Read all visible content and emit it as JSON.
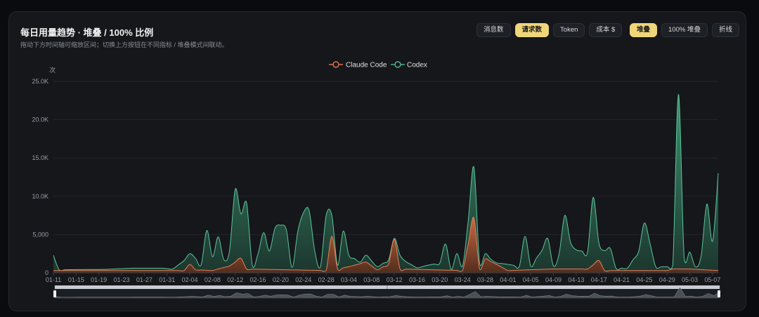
{
  "header": {
    "title": "每日用量趋势 · 堆叠 / 100% 比例",
    "subtitle": "拖动下方时间轴可缩放区间；切换上方按钮在不同指标 / 堆叠模式间联动。"
  },
  "metric_buttons": [
    {
      "label": "消息数",
      "active": false
    },
    {
      "label": "请求数",
      "active": true
    },
    {
      "label": "Token",
      "active": false
    },
    {
      "label": "成本 $",
      "active": false
    }
  ],
  "mode_buttons": [
    {
      "label": "堆叠",
      "active": true
    },
    {
      "label": "100% 堆叠",
      "active": false
    },
    {
      "label": "折线",
      "active": false
    }
  ],
  "colors": {
    "claude": "#d9714a",
    "codex": "#4fb08a",
    "axis_text": "#9a9da4"
  },
  "chart_data": {
    "type": "area",
    "stacked": true,
    "y_unit": "次",
    "ylim": [
      0,
      25000
    ],
    "y_ticks": [
      0,
      5000,
      10000,
      15000,
      20000,
      25000
    ],
    "y_tick_labels": [
      "0",
      "5,000",
      "10.0K",
      "15.0K",
      "20.0K",
      "25.0K"
    ],
    "x_start": "2026-01-11",
    "x_end": "2026-05-08",
    "x_tick_labels": [
      "01-11",
      "01-15",
      "01-19",
      "01-23",
      "01-27",
      "01-31",
      "02-04",
      "02-08",
      "02-12",
      "02-16",
      "02-20",
      "02-24",
      "02-28",
      "03-04",
      "03-08",
      "03-12",
      "03-16",
      "03-20",
      "03-24",
      "03-28",
      "04-01",
      "04-05",
      "04-09",
      "04-13",
      "04-17",
      "04-21",
      "04-25",
      "04-29",
      "05-03",
      "05-07"
    ],
    "legend_position": "top-center",
    "grid": true,
    "series": [
      {
        "name": "Claude Code",
        "color_key": "claude",
        "points": [
          [
            "2026-01-11",
            300
          ],
          [
            "2026-02-03",
            300
          ],
          [
            "2026-02-04",
            1100
          ],
          [
            "2026-02-05",
            400
          ],
          [
            "2026-02-08",
            300
          ],
          [
            "2026-02-11",
            900
          ],
          [
            "2026-02-13",
            1900
          ],
          [
            "2026-02-14",
            500
          ],
          [
            "2026-02-28",
            300
          ],
          [
            "2026-03-01",
            4800
          ],
          [
            "2026-03-02",
            500
          ],
          [
            "2026-03-04",
            800
          ],
          [
            "2026-03-07",
            1400
          ],
          [
            "2026-03-09",
            400
          ],
          [
            "2026-03-11",
            1200
          ],
          [
            "2026-03-12",
            4400
          ],
          [
            "2026-03-13",
            500
          ],
          [
            "2026-03-24",
            300
          ],
          [
            "2026-03-26",
            7200
          ],
          [
            "2026-03-27",
            500
          ],
          [
            "2026-03-28",
            1800
          ],
          [
            "2026-03-30",
            1100
          ],
          [
            "2026-04-01",
            300
          ],
          [
            "2026-04-09",
            500
          ],
          [
            "2026-04-15",
            500
          ],
          [
            "2026-04-17",
            1600
          ],
          [
            "2026-04-18",
            300
          ],
          [
            "2026-04-29",
            300
          ],
          [
            "2026-04-30",
            500
          ],
          [
            "2026-05-03",
            500
          ],
          [
            "2026-05-08",
            300
          ]
        ]
      },
      {
        "name": "Codex",
        "color_key": "codex",
        "points": [
          [
            "2026-01-11",
            2000
          ],
          [
            "2026-01-12",
            100
          ],
          [
            "2026-01-20",
            150
          ],
          [
            "2026-01-25",
            300
          ],
          [
            "2026-01-30",
            300
          ],
          [
            "2026-02-01",
            200
          ],
          [
            "2026-02-03",
            1300
          ],
          [
            "2026-02-05",
            1500
          ],
          [
            "2026-02-06",
            700
          ],
          [
            "2026-02-07",
            5200
          ],
          [
            "2026-02-08",
            1800
          ],
          [
            "2026-02-09",
            4200
          ],
          [
            "2026-02-10",
            1000
          ],
          [
            "2026-02-11",
            2000
          ],
          [
            "2026-02-12",
            9500
          ],
          [
            "2026-02-13",
            5800
          ],
          [
            "2026-02-14",
            8600
          ],
          [
            "2026-02-15",
            500
          ],
          [
            "2026-02-16",
            2000
          ],
          [
            "2026-02-17",
            4800
          ],
          [
            "2026-02-18",
            2400
          ],
          [
            "2026-02-19",
            5400
          ],
          [
            "2026-02-20",
            5800
          ],
          [
            "2026-02-21",
            5200
          ],
          [
            "2026-02-22",
            300
          ],
          [
            "2026-02-23",
            5000
          ],
          [
            "2026-02-24",
            7500
          ],
          [
            "2026-02-25",
            7800
          ],
          [
            "2026-02-26",
            2500
          ],
          [
            "2026-02-27",
            500
          ],
          [
            "2026-02-28",
            7200
          ],
          [
            "2026-03-01",
            2700
          ],
          [
            "2026-03-02",
            500
          ],
          [
            "2026-03-03",
            4800
          ],
          [
            "2026-03-04",
            1500
          ],
          [
            "2026-03-06",
            200
          ],
          [
            "2026-03-07",
            900
          ],
          [
            "2026-03-09",
            400
          ],
          [
            "2026-03-11",
            500
          ],
          [
            "2026-03-12",
            100
          ],
          [
            "2026-03-13",
            1800
          ],
          [
            "2026-03-14",
            1000
          ],
          [
            "2026-03-16",
            200
          ],
          [
            "2026-03-18",
            600
          ],
          [
            "2026-03-20",
            900
          ],
          [
            "2026-03-21",
            3400
          ],
          [
            "2026-03-22",
            100
          ],
          [
            "2026-03-23",
            2200
          ],
          [
            "2026-03-24",
            600
          ],
          [
            "2026-03-25",
            3000
          ],
          [
            "2026-03-26",
            6600
          ],
          [
            "2026-03-27",
            800
          ],
          [
            "2026-03-28",
            700
          ],
          [
            "2026-03-29",
            300
          ],
          [
            "2026-03-30",
            200
          ],
          [
            "2026-04-01",
            800
          ],
          [
            "2026-04-03",
            500
          ],
          [
            "2026-04-04",
            4400
          ],
          [
            "2026-04-05",
            500
          ],
          [
            "2026-04-07",
            2500
          ],
          [
            "2026-04-08",
            4000
          ],
          [
            "2026-04-09",
            400
          ],
          [
            "2026-04-10",
            2000
          ],
          [
            "2026-04-11",
            7000
          ],
          [
            "2026-04-12",
            3500
          ],
          [
            "2026-04-13",
            2500
          ],
          [
            "2026-04-15",
            2200
          ],
          [
            "2026-04-16",
            8800
          ],
          [
            "2026-04-17",
            2300
          ],
          [
            "2026-04-19",
            2900
          ],
          [
            "2026-04-20",
            300
          ],
          [
            "2026-04-22",
            300
          ],
          [
            "2026-04-24",
            2500
          ],
          [
            "2026-04-25",
            6200
          ],
          [
            "2026-04-26",
            3500
          ],
          [
            "2026-04-27",
            500
          ],
          [
            "2026-04-29",
            500
          ],
          [
            "2026-04-30",
            500
          ],
          [
            "2026-05-01",
            22800
          ],
          [
            "2026-05-02",
            1500
          ],
          [
            "2026-05-03",
            2200
          ],
          [
            "2026-05-04",
            300
          ],
          [
            "2026-05-05",
            1800
          ],
          [
            "2026-05-06",
            8600
          ],
          [
            "2026-05-07",
            3800
          ],
          [
            "2026-05-08",
            12700
          ]
        ]
      }
    ]
  }
}
